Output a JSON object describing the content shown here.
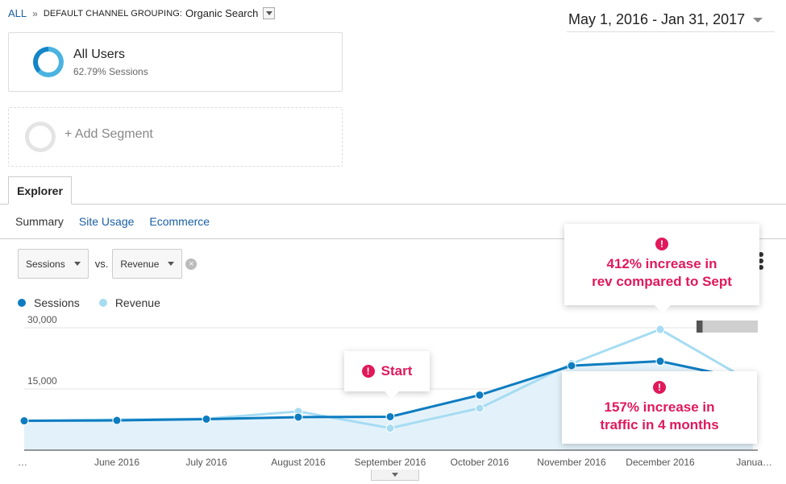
{
  "breadcrumb": {
    "all_label": "ALL",
    "separator": "»",
    "dimension": "DEFAULT CHANNEL GROUPING:",
    "value": "Organic Search"
  },
  "date_range": "May 1, 2016 - Jan 31, 2017",
  "segments": {
    "primary": {
      "name": "All Users",
      "subtitle": "62.79% Sessions",
      "share": 0.6279
    },
    "add_label": "+ Add Segment"
  },
  "tabs": {
    "explorer": "Explorer"
  },
  "subtabs": [
    {
      "label": "Summary",
      "active": true
    },
    {
      "label": "Site Usage",
      "active": false
    },
    {
      "label": "Ecommerce",
      "active": false
    }
  ],
  "metrics": {
    "primary": "Sessions",
    "vs_label": "vs.",
    "secondary": "Revenue"
  },
  "legend": [
    {
      "label": "Sessions",
      "color": "#0d7cc0"
    },
    {
      "label": "Revenue",
      "color": "#a6dcf2"
    }
  ],
  "chart_data": {
    "type": "line",
    "x": [
      "…",
      "June 2016",
      "July 2016",
      "August 2016",
      "September 2016",
      "October 2016",
      "November 2016",
      "December 2016",
      "Janua…"
    ],
    "y_ticks": [
      "30,000",
      "15,000"
    ],
    "ylim": [
      0,
      30000
    ],
    "series": [
      {
        "name": "Sessions",
        "color": "#0d7cc0",
        "values": [
          7200,
          7300,
          7600,
          8100,
          8200,
          13500,
          20700,
          21800,
          17000
        ]
      },
      {
        "name": "Revenue",
        "color": "#a6dcf2",
        "values": [
          7200,
          7500,
          7700,
          9500,
          5400,
          10300,
          21200,
          29600,
          16500
        ]
      }
    ]
  },
  "callouts": {
    "start": "Start",
    "revenue_line1": "412% increase in",
    "revenue_line2": "rev compared to Sept",
    "traffic_line1": "157%  increase in",
    "traffic_line2": "traffic in 4 months",
    "icon": "!"
  },
  "icons": {
    "dropdown": "chevron-down-icon",
    "clear": "clear-icon",
    "more": "more-options-icon",
    "warning": "exclamation-icon"
  }
}
